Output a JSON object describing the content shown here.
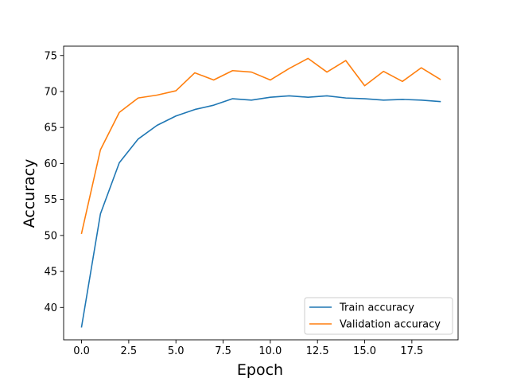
{
  "chart_data": {
    "type": "line",
    "title": "",
    "xlabel": "Epoch",
    "ylabel": "Accuracy",
    "xlim": [
      -0.95,
      19.95
    ],
    "ylim": [
      35.5,
      76.3
    ],
    "xticks": [
      0.0,
      2.5,
      5.0,
      7.5,
      10.0,
      12.5,
      15.0,
      17.5
    ],
    "xtick_labels": [
      "0.0",
      "2.5",
      "5.0",
      "7.5",
      "10.0",
      "12.5",
      "15.0",
      "17.5"
    ],
    "yticks": [
      40,
      45,
      50,
      55,
      60,
      65,
      70,
      75
    ],
    "ytick_labels": [
      "40",
      "45",
      "50",
      "55",
      "60",
      "65",
      "70",
      "75"
    ],
    "grid": false,
    "legend_position": "lower-right",
    "x": [
      0,
      1,
      2,
      3,
      4,
      5,
      6,
      7,
      8,
      9,
      10,
      11,
      12,
      13,
      14,
      15,
      16,
      17,
      18,
      19
    ],
    "series": [
      {
        "name": "Train accuracy",
        "color": "#1f77b4",
        "values": [
          37.3,
          53.0,
          60.1,
          63.4,
          65.3,
          66.6,
          67.5,
          68.1,
          69.0,
          68.8,
          69.2,
          69.4,
          69.2,
          69.4,
          69.1,
          69.0,
          68.8,
          68.9,
          68.8,
          68.6
        ]
      },
      {
        "name": "Validation accuracy",
        "color": "#ff7f0e",
        "values": [
          50.3,
          61.9,
          67.1,
          69.1,
          69.5,
          70.1,
          72.6,
          71.6,
          72.9,
          72.7,
          71.6,
          73.2,
          74.6,
          72.7,
          74.3,
          70.8,
          72.8,
          71.4,
          73.3,
          71.7
        ]
      }
    ]
  }
}
